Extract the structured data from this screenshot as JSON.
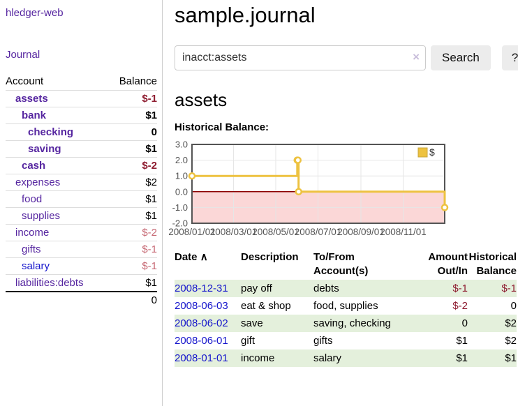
{
  "icons": {
    "sort_up": "∧",
    "clear": "×",
    "legend_swatch": "gold-square"
  },
  "colors": {
    "link_purple": "#5626a0",
    "link_blue": "#1616cc",
    "negative_strong": "#8e1c30",
    "negative_muted": "#c76a75",
    "row_green": "#e4f0dc",
    "series_gold": "#edc240"
  },
  "sidebar": {
    "app_title": "hledger-web",
    "journal_label": "Journal",
    "accounts_table": {
      "headers": [
        "Account",
        "Balance"
      ],
      "rows": [
        {
          "name": "assets",
          "depth": 1,
          "balance": "$-1",
          "bold": true,
          "neg": "strong"
        },
        {
          "name": "bank",
          "depth": 2,
          "balance": "$1",
          "bold": true
        },
        {
          "name": "checking",
          "depth": 3,
          "balance": "0",
          "bold": true
        },
        {
          "name": "saving",
          "depth": 3,
          "balance": "$1",
          "bold": true
        },
        {
          "name": "cash",
          "depth": 2,
          "balance": "$-2",
          "bold": true,
          "neg": "strong"
        },
        {
          "name": "expenses",
          "depth": 1,
          "balance": "$2"
        },
        {
          "name": "food",
          "depth": 2,
          "balance": "$1"
        },
        {
          "name": "supplies",
          "depth": 2,
          "balance": "$1"
        },
        {
          "name": "income",
          "depth": 1,
          "balance": "$-2",
          "neg": "muted"
        },
        {
          "name": "gifts",
          "depth": 2,
          "balance": "$-1",
          "neg": "muted"
        },
        {
          "name": "salary",
          "depth": 2,
          "balance": "$-1",
          "neg": "muted",
          "link": "blue"
        },
        {
          "name": "liabilities:debts",
          "depth": 1,
          "balance": "$1"
        }
      ],
      "total": "0"
    }
  },
  "header": {
    "title": "sample.journal"
  },
  "search": {
    "value": "inacct:assets",
    "button_label": "Search",
    "help_label": "?"
  },
  "account_page": {
    "heading": "assets",
    "chart_label": "Historical Balance:"
  },
  "chart_data": {
    "type": "line",
    "title": "Historical Balance:",
    "legend": [
      {
        "label": "$",
        "color": "#edc240"
      }
    ],
    "legend_position": "top-right",
    "series": [
      {
        "name": "$",
        "step": true,
        "color": "#edc240",
        "marker_fill": "#ffffff",
        "points": [
          {
            "date": "2008-01-01",
            "value": 1
          },
          {
            "date": "2008-06-01",
            "value": 2
          },
          {
            "date": "2008-06-02",
            "value": 2
          },
          {
            "date": "2008-06-03",
            "value": 0
          },
          {
            "date": "2008-12-31",
            "value": -1
          }
        ]
      }
    ],
    "x_start": "2008-01-01",
    "x_end": "2008-12-31",
    "xticks": [
      {
        "date": "2008-01-01",
        "label": "2008/01/01"
      },
      {
        "date": "2008-03-01",
        "label": "2008/03/01"
      },
      {
        "date": "2008-05-01",
        "label": "2008/05/01"
      },
      {
        "date": "2008-07-01",
        "label": "2008/07/01"
      },
      {
        "date": "2008-09-01",
        "label": "2008/09/01"
      },
      {
        "date": "2008-11-01",
        "label": "2008/11/01"
      }
    ],
    "yticks": [
      3.0,
      2.0,
      1.0,
      0.0,
      -1.0,
      -2.0
    ],
    "ylim": [
      -2,
      3
    ],
    "grid": true,
    "grid_color": "#e6e6e6",
    "border_color": "#545454",
    "tick_label_color": "#545454",
    "negative_region_fill": "#fbd7d7",
    "zero_line_color": "#8b0000"
  },
  "register": {
    "headers": {
      "date": {
        "line1": "Date"
      },
      "description": {
        "line1": "Description"
      },
      "accounts": {
        "line1": "To/From",
        "line2": "Account(s)"
      },
      "amount": {
        "line1": "Amount",
        "line2": "Out/In"
      },
      "balance": {
        "line1": "Historical",
        "line2": "Balance"
      }
    },
    "rows": [
      {
        "date": "2008-12-31",
        "description": "pay off",
        "accounts": "debts",
        "amount": "$-1",
        "balance": "$-1",
        "amount_negative": true,
        "balance_negative": true,
        "shade": true
      },
      {
        "date": "2008-06-03",
        "description": "eat & shop",
        "accounts": "food, supplies",
        "amount": "$-2",
        "balance": "0",
        "amount_negative": true,
        "balance_negative": false,
        "shade": false
      },
      {
        "date": "2008-06-02",
        "description": "save",
        "accounts": "saving, checking",
        "amount": "0",
        "balance": "$2",
        "amount_negative": false,
        "balance_negative": false,
        "shade": true
      },
      {
        "date": "2008-06-01",
        "description": "gift",
        "accounts": "gifts",
        "amount": "$1",
        "balance": "$2",
        "amount_negative": false,
        "balance_negative": false,
        "shade": false
      },
      {
        "date": "2008-01-01",
        "description": "income",
        "accounts": "salary",
        "amount": "$1",
        "balance": "$1",
        "amount_negative": false,
        "balance_negative": false,
        "shade": true
      }
    ]
  }
}
